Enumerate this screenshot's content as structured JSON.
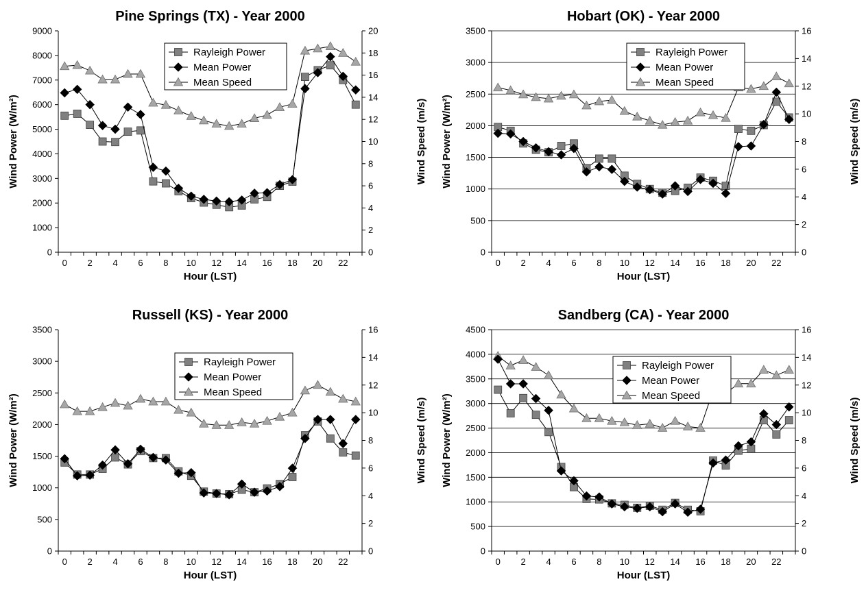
{
  "chart_data": [
    {
      "type": "line",
      "title": "Pine Springs (TX) - Year 2000",
      "xlabel": "Hour (LST)",
      "ylabel": "Wind Power (W/m²)",
      "y2label": "Wind Speed (m/s)",
      "x": [
        0,
        1,
        2,
        3,
        4,
        5,
        6,
        7,
        8,
        9,
        10,
        11,
        12,
        13,
        14,
        15,
        16,
        17,
        18,
        19,
        20,
        21,
        22,
        23
      ],
      "xticks": [
        0,
        2,
        4,
        6,
        8,
        10,
        12,
        14,
        16,
        18,
        20,
        22
      ],
      "ylim": [
        0,
        9000
      ],
      "yticks": [
        0,
        1000,
        2000,
        3000,
        4000,
        5000,
        6000,
        7000,
        8000,
        9000
      ],
      "y2lim": [
        0,
        20
      ],
      "y2ticks": [
        0,
        2,
        4,
        6,
        8,
        10,
        12,
        14,
        16,
        18,
        20
      ],
      "grid": false,
      "legend_position": "top-center",
      "series": [
        {
          "name": "Rayleigh Power",
          "marker": "square",
          "axis": "left",
          "values": [
            5550,
            5630,
            5180,
            4500,
            4480,
            4900,
            4950,
            2880,
            2800,
            2480,
            2200,
            2020,
            1930,
            1830,
            1900,
            2150,
            2250,
            2700,
            2870,
            7130,
            7400,
            7600,
            7000,
            6000
          ]
        },
        {
          "name": "Mean Power",
          "marker": "diamond",
          "axis": "left",
          "values": [
            6480,
            6620,
            6000,
            5150,
            5000,
            5900,
            5600,
            3450,
            3300,
            2600,
            2280,
            2150,
            2080,
            2050,
            2120,
            2400,
            2420,
            2750,
            2950,
            6650,
            7300,
            7950,
            7150,
            6600
          ]
        },
        {
          "name": "Mean Speed",
          "marker": "triangle",
          "axis": "right",
          "values": [
            16.8,
            16.9,
            16.4,
            15.6,
            15.6,
            16.1,
            16.1,
            13.5,
            13.3,
            12.8,
            12.3,
            11.9,
            11.6,
            11.4,
            11.6,
            12.1,
            12.4,
            13.1,
            13.4,
            18.2,
            18.4,
            18.6,
            18.0,
            17.2
          ]
        }
      ],
      "colors": {
        "rayleigh": "#808080",
        "mean_power": "#000000",
        "mean_speed": "#a6a6a6"
      }
    },
    {
      "type": "line",
      "title": "Hobart (OK) - Year 2000",
      "xlabel": "Hour (LST)",
      "ylabel": "Wind Power (W/m²)",
      "y2label": "Wind Speed (m/s)",
      "x": [
        0,
        1,
        2,
        3,
        4,
        5,
        6,
        7,
        8,
        9,
        10,
        11,
        12,
        13,
        14,
        15,
        16,
        17,
        18,
        19,
        20,
        21,
        22,
        23
      ],
      "xticks": [
        0,
        2,
        4,
        6,
        8,
        10,
        12,
        14,
        16,
        18,
        20,
        22
      ],
      "ylim": [
        0,
        3500
      ],
      "yticks": [
        0,
        500,
        1000,
        1500,
        2000,
        2500,
        3000,
        3500
      ],
      "y2lim": [
        0,
        16
      ],
      "y2ticks": [
        0,
        2,
        4,
        6,
        8,
        10,
        12,
        14,
        16
      ],
      "grid": true,
      "legend_position": "top-center",
      "series": [
        {
          "name": "Rayleigh Power",
          "marker": "square",
          "axis": "left",
          "values": [
            1980,
            1920,
            1720,
            1620,
            1580,
            1680,
            1720,
            1330,
            1480,
            1480,
            1210,
            1080,
            1000,
            940,
            970,
            1020,
            1180,
            1130,
            1050,
            1950,
            1920,
            2010,
            2380,
            2130
          ]
        },
        {
          "name": "Mean Power",
          "marker": "diamond",
          "axis": "left",
          "values": [
            1880,
            1870,
            1750,
            1650,
            1590,
            1540,
            1640,
            1270,
            1350,
            1310,
            1120,
            1030,
            990,
            920,
            1050,
            960,
            1150,
            1090,
            930,
            1670,
            1680,
            2020,
            2530,
            2100
          ]
        },
        {
          "name": "Mean Speed",
          "marker": "triangle",
          "axis": "right",
          "values": [
            11.9,
            11.7,
            11.4,
            11.2,
            11.1,
            11.3,
            11.4,
            10.6,
            10.9,
            11.0,
            10.2,
            9.8,
            9.5,
            9.2,
            9.4,
            9.5,
            10.1,
            9.9,
            9.7,
            11.9,
            11.8,
            12.0,
            12.7,
            12.2
          ]
        }
      ],
      "colors": {
        "rayleigh": "#808080",
        "mean_power": "#000000",
        "mean_speed": "#a6a6a6"
      }
    },
    {
      "type": "line",
      "title": "Russell (KS) - Year 2000",
      "xlabel": "Hour (LST)",
      "ylabel": "Wind Power (W/m²)",
      "y2label": "Wind Speed (m/s)",
      "x": [
        0,
        1,
        2,
        3,
        4,
        5,
        6,
        7,
        8,
        9,
        10,
        11,
        12,
        13,
        14,
        15,
        16,
        17,
        18,
        19,
        20,
        21,
        22,
        23
      ],
      "xticks": [
        0,
        2,
        4,
        6,
        8,
        10,
        12,
        14,
        16,
        18,
        20,
        22
      ],
      "ylim": [
        0,
        3500
      ],
      "yticks": [
        0,
        500,
        1000,
        1500,
        2000,
        2500,
        3000,
        3500
      ],
      "y2lim": [
        0,
        16
      ],
      "y2ticks": [
        0,
        2,
        4,
        6,
        8,
        10,
        12,
        14,
        16
      ],
      "grid": false,
      "legend_position": "top-center",
      "series": [
        {
          "name": "Rayleigh Power",
          "marker": "square",
          "axis": "left",
          "values": [
            1400,
            1210,
            1210,
            1300,
            1480,
            1370,
            1580,
            1470,
            1470,
            1260,
            1190,
            940,
            910,
            900,
            970,
            930,
            990,
            1060,
            1170,
            1830,
            2050,
            1780,
            1560,
            1510
          ]
        },
        {
          "name": "Mean Power",
          "marker": "diamond",
          "axis": "left",
          "values": [
            1460,
            1190,
            1200,
            1360,
            1600,
            1380,
            1610,
            1480,
            1440,
            1230,
            1240,
            920,
            910,
            890,
            1060,
            930,
            950,
            1020,
            1310,
            1780,
            2080,
            2080,
            1700,
            2080
          ]
        },
        {
          "name": "Mean Speed",
          "marker": "triangle",
          "axis": "right",
          "values": [
            10.6,
            10.1,
            10.1,
            10.4,
            10.7,
            10.5,
            11.0,
            10.8,
            10.8,
            10.2,
            10.0,
            9.2,
            9.1,
            9.1,
            9.3,
            9.2,
            9.4,
            9.7,
            10.0,
            11.6,
            12.0,
            11.5,
            11.0,
            10.8
          ]
        }
      ],
      "colors": {
        "rayleigh": "#808080",
        "mean_power": "#000000",
        "mean_speed": "#a6a6a6"
      }
    },
    {
      "type": "line",
      "title": "Sandberg (CA) - Year 2000",
      "xlabel": "Hour (LST)",
      "ylabel": "Wind Power (W/m²)",
      "y2label": "Wind Speed (m/s)",
      "x": [
        0,
        1,
        2,
        3,
        4,
        5,
        6,
        7,
        8,
        9,
        10,
        11,
        12,
        13,
        14,
        15,
        16,
        17,
        18,
        19,
        20,
        21,
        22,
        23
      ],
      "xticks": [
        0,
        2,
        4,
        6,
        8,
        10,
        12,
        14,
        16,
        18,
        20,
        22
      ],
      "ylim": [
        0,
        4500
      ],
      "yticks": [
        0,
        500,
        1000,
        1500,
        2000,
        2500,
        3000,
        3500,
        4000,
        4500
      ],
      "y2lim": [
        0,
        16
      ],
      "y2ticks": [
        0,
        2,
        4,
        6,
        8,
        10,
        12,
        14,
        16
      ],
      "grid": true,
      "legend_position": "top-center",
      "series": [
        {
          "name": "Rayleigh Power",
          "marker": "square",
          "axis": "left",
          "values": [
            3280,
            2800,
            3110,
            2770,
            2420,
            1710,
            1300,
            1060,
            1050,
            970,
            940,
            880,
            920,
            840,
            980,
            840,
            810,
            1840,
            1740,
            2040,
            2080,
            2660,
            2370,
            2660
          ]
        },
        {
          "name": "Mean Power",
          "marker": "diamond",
          "axis": "left",
          "values": [
            3900,
            3400,
            3400,
            3100,
            2860,
            1630,
            1430,
            1120,
            1100,
            960,
            900,
            870,
            900,
            800,
            960,
            790,
            850,
            1790,
            1850,
            2140,
            2220,
            2790,
            2570,
            2930
          ]
        },
        {
          "name": "Mean Speed",
          "marker": "triangle",
          "axis": "right",
          "values": [
            14.1,
            13.4,
            13.8,
            13.3,
            12.7,
            11.3,
            10.3,
            9.6,
            9.6,
            9.4,
            9.3,
            9.1,
            9.2,
            8.9,
            9.4,
            9.0,
            8.9,
            11.6,
            11.4,
            12.1,
            12.1,
            13.1,
            12.7,
            13.1
          ]
        }
      ],
      "colors": {
        "rayleigh": "#808080",
        "mean_power": "#000000",
        "mean_speed": "#a6a6a6"
      }
    }
  ]
}
